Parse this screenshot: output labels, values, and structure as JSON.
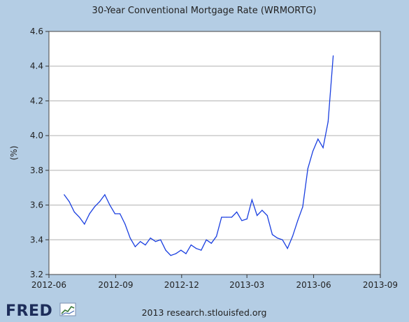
{
  "footer": {
    "logo_text": "FRED",
    "credit": "2013 research.stlouisfed.org"
  },
  "colors": {
    "background": "#b4cde4",
    "series": "#1a3fe0",
    "logo": "#1d2d5a"
  },
  "chart_data": {
    "type": "line",
    "title": "30-Year Conventional Mortgage Rate (WRMORTG)",
    "ylabel": "(%)",
    "xlabel": "",
    "ylim": [
      3.2,
      4.6
    ],
    "xlim": [
      "2012-06-01",
      "2013-09-01"
    ],
    "yticks": [
      3.2,
      3.4,
      3.6,
      3.8,
      4.0,
      4.2,
      4.4,
      4.6
    ],
    "ytick_labels": [
      "3.2",
      "3.4",
      "3.6",
      "3.8",
      "4.0",
      "4.2",
      "4.4",
      "4.6"
    ],
    "xticks": [
      "2012-06-01",
      "2012-09-01",
      "2012-12-01",
      "2013-03-01",
      "2013-06-01",
      "2013-09-01"
    ],
    "xtick_labels": [
      "2012-06",
      "2012-09",
      "2012-12",
      "2013-03",
      "2013-06",
      "2013-09"
    ],
    "grid": true,
    "series": [
      {
        "x": [
          "2012-06-22",
          "2012-06-29",
          "2012-07-06",
          "2012-07-13",
          "2012-07-20",
          "2012-07-27",
          "2012-08-03",
          "2012-08-10",
          "2012-08-17",
          "2012-08-24",
          "2012-08-31",
          "2012-09-07",
          "2012-09-14",
          "2012-09-21",
          "2012-09-28",
          "2012-10-05",
          "2012-10-12",
          "2012-10-19",
          "2012-10-26",
          "2012-11-02",
          "2012-11-09",
          "2012-11-16",
          "2012-11-23",
          "2012-11-30",
          "2012-12-07",
          "2012-12-14",
          "2012-12-21",
          "2012-12-28",
          "2013-01-04",
          "2013-01-11",
          "2013-01-18",
          "2013-01-25",
          "2013-02-01",
          "2013-02-08",
          "2013-02-15",
          "2013-02-22",
          "2013-03-01",
          "2013-03-08",
          "2013-03-15",
          "2013-03-22",
          "2013-03-29",
          "2013-04-05",
          "2013-04-12",
          "2013-04-19",
          "2013-04-26",
          "2013-05-03",
          "2013-05-10",
          "2013-05-17",
          "2013-05-24",
          "2013-05-31",
          "2013-06-07",
          "2013-06-14",
          "2013-06-21",
          "2013-06-28"
        ],
        "y": [
          3.66,
          3.62,
          3.56,
          3.53,
          3.49,
          3.55,
          3.59,
          3.62,
          3.66,
          3.6,
          3.55,
          3.55,
          3.49,
          3.41,
          3.36,
          3.39,
          3.37,
          3.41,
          3.39,
          3.4,
          3.34,
          3.31,
          3.32,
          3.34,
          3.32,
          3.37,
          3.35,
          3.34,
          3.4,
          3.38,
          3.42,
          3.53,
          3.53,
          3.53,
          3.56,
          3.51,
          3.52,
          3.63,
          3.54,
          3.57,
          3.54,
          3.43,
          3.41,
          3.4,
          3.35,
          3.42,
          3.51,
          3.59,
          3.81,
          3.91,
          3.98,
          3.93,
          4.08,
          4.46
        ]
      }
    ]
  }
}
